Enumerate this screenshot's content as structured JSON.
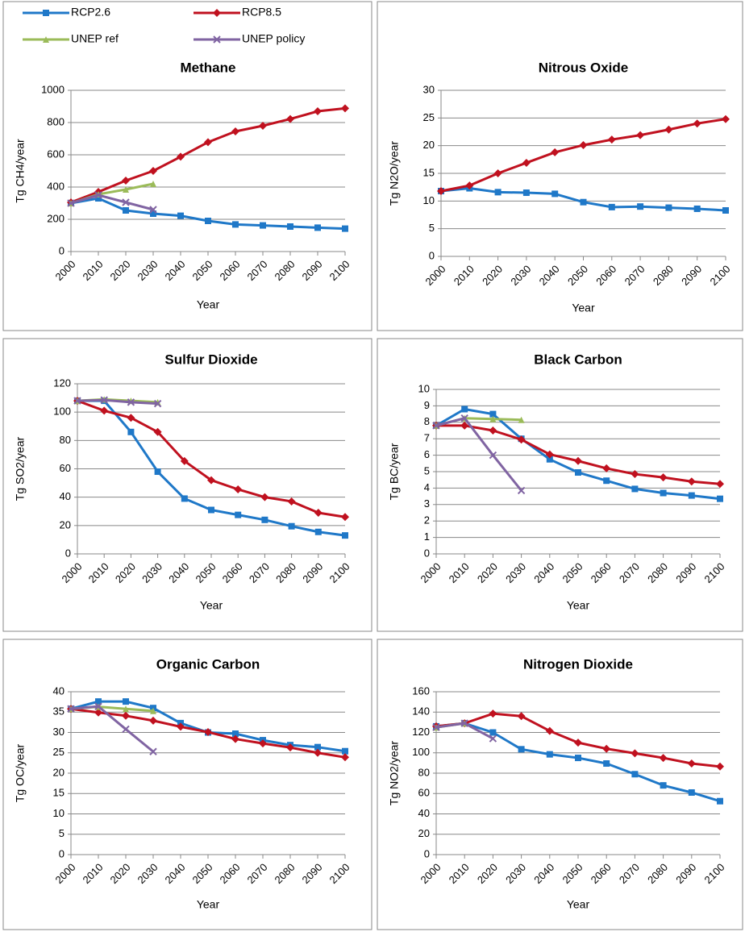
{
  "chart_data": [
    {
      "type": "line",
      "title": "Methane",
      "ylabel": "Tg CH4/year",
      "xlabel": "Year",
      "grid": true,
      "legend": "top",
      "categories": [
        "2000",
        "2010",
        "2020",
        "2030",
        "2040",
        "2050",
        "2060",
        "2070",
        "2080",
        "2090",
        "2100"
      ],
      "ylim": [
        0,
        1000
      ],
      "yticks": [
        0,
        200,
        400,
        600,
        800,
        1000
      ],
      "series": [
        {
          "name": "RCP2.6",
          "color": "#1f78c8",
          "marker": "square",
          "values": [
            300,
            330,
            255,
            235,
            222,
            190,
            168,
            162,
            155,
            148,
            142
          ]
        },
        {
          "name": "RCP8.5",
          "color": "#c0111f",
          "marker": "diamond",
          "values": [
            305,
            370,
            440,
            500,
            588,
            678,
            745,
            780,
            822,
            870,
            888
          ]
        },
        {
          "name": "UNEP ref",
          "color": "#9bbb59",
          "marker": "triangle",
          "values": [
            300,
            355,
            385,
            420,
            null,
            null,
            null,
            null,
            null,
            null,
            null
          ]
        },
        {
          "name": "UNEP policy",
          "color": "#8064a2",
          "marker": "x",
          "values": [
            300,
            350,
            305,
            260,
            null,
            null,
            null,
            null,
            null,
            null,
            null
          ]
        }
      ]
    },
    {
      "type": "line",
      "title": "Nitrous Oxide",
      "ylabel": "Tg N2O/year",
      "xlabel": "Year",
      "grid": true,
      "categories": [
        "2000",
        "2010",
        "2020",
        "2030",
        "2040",
        "2050",
        "2060",
        "2070",
        "2080",
        "2090",
        "2100"
      ],
      "ylim": [
        0,
        30
      ],
      "yticks": [
        0,
        5,
        10,
        15,
        20,
        25,
        30
      ],
      "series": [
        {
          "color": "#1f78c8",
          "marker": "square",
          "values": [
            11.8,
            12.3,
            11.6,
            11.5,
            11.3,
            9.8,
            8.9,
            9.0,
            8.8,
            8.6,
            8.3
          ]
        },
        {
          "color": "#c0111f",
          "marker": "diamond",
          "values": [
            11.8,
            12.8,
            15.0,
            16.9,
            18.8,
            20.1,
            21.1,
            21.9,
            22.9,
            24.0,
            24.8
          ]
        }
      ]
    },
    {
      "type": "line",
      "title": "Sulfur Dioxide",
      "ylabel": "Tg SO2/year",
      "xlabel": "Year",
      "grid": true,
      "categories": [
        "2000",
        "2010",
        "2020",
        "2030",
        "2040",
        "2050",
        "2060",
        "2070",
        "2080",
        "2090",
        "2100"
      ],
      "ylim": [
        0,
        120
      ],
      "yticks": [
        0,
        20,
        40,
        60,
        80,
        100,
        120
      ],
      "series": [
        {
          "color": "#1f78c8",
          "marker": "square",
          "values": [
            108,
            108,
            86,
            58,
            39,
            31,
            27.5,
            24,
            19.5,
            15.5,
            13
          ]
        },
        {
          "color": "#c0111f",
          "marker": "diamond",
          "values": [
            108,
            101,
            96,
            86,
            65.5,
            52,
            45.5,
            40,
            37,
            29,
            26
          ]
        },
        {
          "color": "#9bbb59",
          "marker": "triangle",
          "values": [
            108,
            109,
            108,
            107,
            null,
            null,
            null,
            null,
            null,
            null,
            null
          ]
        },
        {
          "color": "#8064a2",
          "marker": "x",
          "values": [
            108,
            108.5,
            107,
            106,
            null,
            null,
            null,
            null,
            null,
            null,
            null
          ]
        }
      ]
    },
    {
      "type": "line",
      "title": "Black Carbon",
      "ylabel": "Tg BC/year",
      "xlabel": "Year",
      "grid": true,
      "categories": [
        "2000",
        "2010",
        "2020",
        "2030",
        "2040",
        "2050",
        "2060",
        "2070",
        "2080",
        "2090",
        "2100"
      ],
      "ylim": [
        0,
        10
      ],
      "yticks": [
        0,
        1,
        2,
        3,
        4,
        5,
        6,
        7,
        8,
        9,
        10
      ],
      "series": [
        {
          "color": "#1f78c8",
          "marker": "square",
          "values": [
            7.8,
            8.8,
            8.5,
            7.0,
            5.75,
            4.95,
            4.45,
            3.95,
            3.7,
            3.55,
            3.35
          ]
        },
        {
          "color": "#c0111f",
          "marker": "diamond",
          "values": [
            7.8,
            7.8,
            7.5,
            6.95,
            6.05,
            5.65,
            5.2,
            4.85,
            4.65,
            4.4,
            4.25
          ]
        },
        {
          "color": "#9bbb59",
          "marker": "triangle",
          "values": [
            7.8,
            8.25,
            8.2,
            8.15,
            null,
            null,
            null,
            null,
            null,
            null,
            null
          ]
        },
        {
          "color": "#8064a2",
          "marker": "x",
          "values": [
            7.8,
            8.25,
            6.0,
            3.85,
            null,
            null,
            null,
            null,
            null,
            null,
            null
          ]
        }
      ]
    },
    {
      "type": "line",
      "title": "Organic Carbon",
      "ylabel": "Tg OC/year",
      "xlabel": "Year",
      "grid": true,
      "categories": [
        "2000",
        "2010",
        "2020",
        "2030",
        "2040",
        "2050",
        "2060",
        "2070",
        "2080",
        "2090",
        "2100"
      ],
      "ylim": [
        0,
        40
      ],
      "yticks": [
        0,
        5,
        10,
        15,
        20,
        25,
        30,
        35,
        40
      ],
      "series": [
        {
          "color": "#1f78c8",
          "marker": "square",
          "values": [
            35.8,
            37.6,
            37.6,
            36,
            32.3,
            30,
            29.7,
            28.1,
            26.9,
            26.4,
            25.4
          ]
        },
        {
          "color": "#c0111f",
          "marker": "diamond",
          "values": [
            35.8,
            34.9,
            34.1,
            32.9,
            31.4,
            30.1,
            28.4,
            27.3,
            26.3,
            25,
            23.9
          ]
        },
        {
          "color": "#9bbb59",
          "marker": "triangle",
          "values": [
            35.8,
            36.3,
            35.8,
            35.3,
            null,
            null,
            null,
            null,
            null,
            null,
            null
          ]
        },
        {
          "color": "#8064a2",
          "marker": "x",
          "values": [
            35.8,
            36.4,
            30.8,
            25.3,
            null,
            null,
            null,
            null,
            null,
            null,
            null
          ]
        }
      ]
    },
    {
      "type": "line",
      "title": "Nitrogen Dioxide",
      "ylabel": "Tg NO2/year",
      "xlabel": "Year",
      "grid": true,
      "categories": [
        "2000",
        "2010",
        "2020",
        "2030",
        "2040",
        "2050",
        "2060",
        "2070",
        "2080",
        "2090",
        "2100"
      ],
      "ylim": [
        0,
        160
      ],
      "yticks": [
        0,
        20,
        40,
        60,
        80,
        100,
        120,
        140,
        160
      ],
      "series": [
        {
          "color": "#1f78c8",
          "marker": "square",
          "values": [
            126,
            129,
            120,
            103.5,
            98.5,
            95,
            89.5,
            79,
            68,
            61,
            52.5
          ]
        },
        {
          "color": "#c0111f",
          "marker": "diamond",
          "values": [
            126,
            129,
            138.5,
            136,
            121.5,
            110,
            104,
            99.5,
            95,
            89.5,
            86.5
          ]
        },
        {
          "color": "#9bbb59",
          "marker": "triangle",
          "values": [
            125,
            129,
            null,
            null,
            null,
            null,
            null,
            null,
            null,
            null,
            null
          ]
        },
        {
          "color": "#8064a2",
          "marker": "x",
          "values": [
            125,
            129,
            114,
            null,
            null,
            null,
            null,
            null,
            null,
            null,
            null
          ]
        }
      ]
    }
  ]
}
